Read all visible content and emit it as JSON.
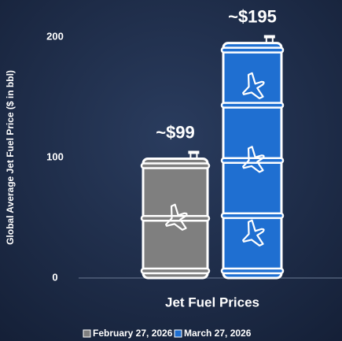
{
  "chart_data": {
    "type": "barrel_bar",
    "y_label": "Global Average Jet Fuel Price ($ in bbl)",
    "x_label": "Jet Fuel Prices",
    "series": [
      {
        "name": "February 27, 2026",
        "color": "#7f7f7f",
        "values": [
          99
        ],
        "value_labels": [
          "~$99"
        ]
      },
      {
        "name": "March 27, 2026",
        "color": "#1f6fd1",
        "values": [
          195
        ],
        "value_labels": [
          "~$195"
        ]
      }
    ],
    "ylim": [
      0,
      230
    ],
    "yticks": [
      0,
      100,
      200
    ]
  }
}
